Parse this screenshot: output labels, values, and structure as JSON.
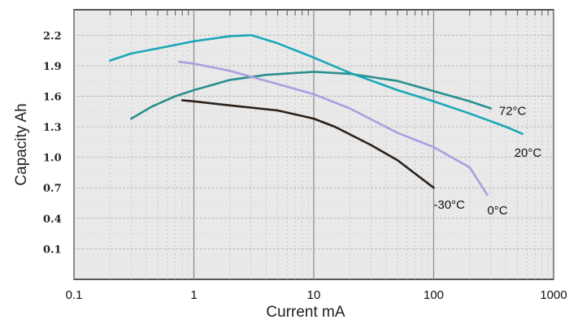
{
  "chart_data": {
    "type": "line",
    "xlabel": "Current mA",
    "ylabel": "Capacity Ah",
    "x_scale": "log",
    "xlim": [
      0.1,
      1000
    ],
    "ylim": [
      -0.2,
      2.45
    ],
    "x_ticks": [
      0.1,
      1,
      10,
      100,
      1000
    ],
    "x_tick_labels": [
      "0.1",
      "1",
      "10",
      "100",
      "1000"
    ],
    "y_ticks": [
      2.2,
      1.9,
      1.6,
      1.3,
      1.0,
      0.7,
      0.4,
      0.1
    ],
    "y_tick_labels": [
      "2.2",
      "1.9",
      "1.6",
      "1.3",
      "1.0",
      "0.7",
      "0.4",
      "0.1"
    ],
    "grid": true,
    "series": [
      {
        "name": "72°C",
        "color": "#2a8f8f",
        "points": [
          [
            0.3,
            1.38
          ],
          [
            0.45,
            1.5
          ],
          [
            0.7,
            1.6
          ],
          [
            1,
            1.66
          ],
          [
            2,
            1.76
          ],
          [
            4,
            1.81
          ],
          [
            10,
            1.84
          ],
          [
            20,
            1.82
          ],
          [
            50,
            1.75
          ],
          [
            100,
            1.65
          ],
          [
            200,
            1.55
          ],
          [
            300,
            1.48
          ]
        ]
      },
      {
        "name": "20°C",
        "color": "#1aa8b8",
        "points": [
          [
            0.2,
            1.95
          ],
          [
            0.3,
            2.02
          ],
          [
            0.5,
            2.07
          ],
          [
            1,
            2.14
          ],
          [
            2,
            2.19
          ],
          [
            3,
            2.2
          ],
          [
            5,
            2.12
          ],
          [
            10,
            1.98
          ],
          [
            20,
            1.83
          ],
          [
            50,
            1.66
          ],
          [
            100,
            1.55
          ],
          [
            200,
            1.43
          ],
          [
            400,
            1.3
          ],
          [
            550,
            1.23
          ]
        ]
      },
      {
        "name": "0°C",
        "color": "#a8a0e0",
        "points": [
          [
            0.75,
            1.94
          ],
          [
            1,
            1.92
          ],
          [
            2,
            1.85
          ],
          [
            5,
            1.72
          ],
          [
            10,
            1.62
          ],
          [
            20,
            1.48
          ],
          [
            50,
            1.24
          ],
          [
            100,
            1.1
          ],
          [
            200,
            0.9
          ],
          [
            280,
            0.63
          ]
        ]
      },
      {
        "name": "-30°C",
        "color": "#2a2018",
        "points": [
          [
            0.8,
            1.56
          ],
          [
            1,
            1.55
          ],
          [
            2,
            1.51
          ],
          [
            5,
            1.46
          ],
          [
            10,
            1.38
          ],
          [
            15,
            1.3
          ],
          [
            30,
            1.12
          ],
          [
            50,
            0.97
          ],
          [
            100,
            0.7
          ]
        ]
      }
    ]
  }
}
